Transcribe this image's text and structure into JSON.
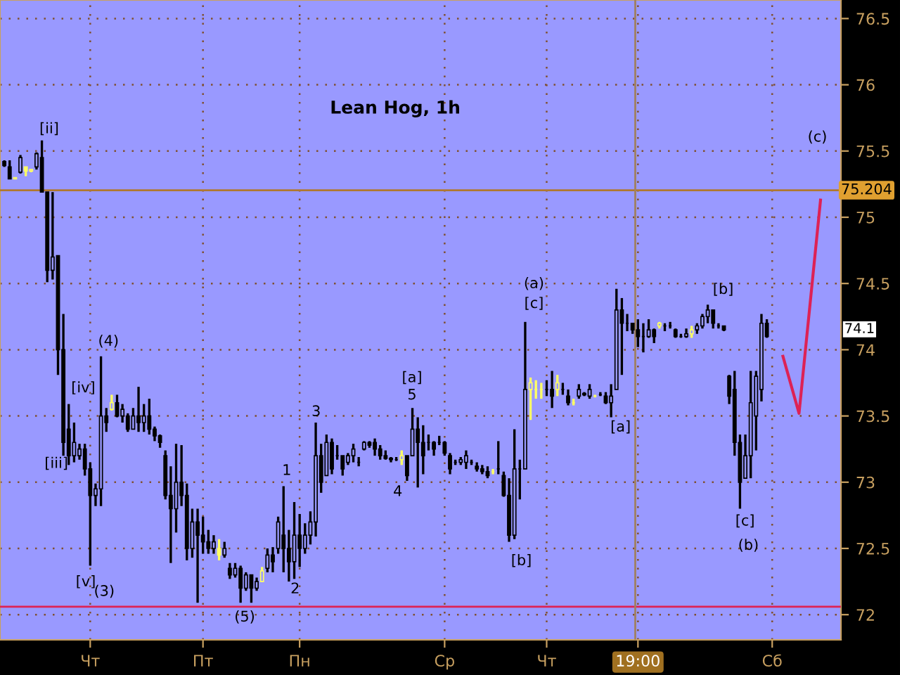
{
  "chart_data": {
    "type": "candlestick",
    "title": "Lean Hog, 1h",
    "categories": [
      null,
      null,
      null,
      null,
      null,
      null,
      null,
      null,
      null,
      null,
      null,
      null,
      null,
      null,
      null,
      null,
      "Чт",
      null,
      null,
      null,
      null,
      null,
      null,
      null,
      null,
      null,
      null,
      null,
      null,
      null,
      null,
      null,
      null,
      null,
      null,
      null,
      null,
      "Пт",
      null,
      null,
      null,
      null,
      null,
      null,
      null,
      null,
      null,
      null,
      null,
      null,
      null,
      null,
      null,
      null,
      null,
      "Пн",
      null,
      null,
      null,
      null,
      null,
      null,
      null,
      null,
      null,
      null,
      null,
      null,
      null,
      null,
      null,
      null,
      null,
      null,
      null,
      null,
      null,
      null,
      null,
      null,
      null,
      null,
      "Ср",
      null,
      null,
      null,
      null,
      null,
      null,
      null,
      null,
      null,
      null,
      null,
      null,
      null,
      null,
      null,
      null,
      null,
      null,
      "Чт",
      null,
      null,
      null,
      null,
      null,
      null,
      null,
      null,
      null,
      null,
      null,
      null,
      null,
      null,
      null,
      null,
      "19:00",
      null,
      null,
      null,
      null,
      null,
      null,
      null,
      null,
      null,
      null,
      null,
      null,
      null,
      null,
      null,
      null,
      null,
      null,
      null,
      null,
      null,
      null,
      null,
      null,
      "Сб",
      null,
      null,
      null,
      null,
      null,
      null,
      null,
      null,
      null,
      null,
      null,
      null
    ],
    "ohlc": [
      [
        75.42,
        75.43,
        75.38,
        75.39
      ],
      [
        75.38,
        75.43,
        75.29,
        75.29
      ],
      [
        75.29,
        75.3,
        75.29,
        75.3
      ],
      [
        75.34,
        75.47,
        75.33,
        75.45
      ],
      [
        75.38,
        75.38,
        75.31,
        75.35
      ],
      [
        75.35,
        75.36,
        75.34,
        75.36
      ],
      [
        75.38,
        75.49,
        75.36,
        75.48
      ],
      [
        75.45,
        75.58,
        75.19,
        75.19
      ],
      [
        75.19,
        75.19,
        74.51,
        74.6
      ],
      [
        74.6,
        75.19,
        74.53,
        74.7
      ],
      [
        74.71,
        74.71,
        73.81,
        74.0
      ],
      [
        74.0,
        74.27,
        73.2,
        73.3
      ],
      [
        73.4,
        73.59,
        73.13,
        73.2
      ],
      [
        73.2,
        73.45,
        73.15,
        73.3
      ],
      [
        73.2,
        73.29,
        73.17,
        73.25
      ],
      [
        73.25,
        73.29,
        73.05,
        73.1
      ],
      [
        73.1,
        73.15,
        72.37,
        72.9
      ],
      [
        72.9,
        72.99,
        72.82,
        72.95
      ],
      [
        72.95,
        73.95,
        72.82,
        73.5
      ],
      [
        73.5,
        73.56,
        73.38,
        73.45
      ],
      [
        73.55,
        73.66,
        73.54,
        73.6
      ],
      [
        73.6,
        73.66,
        73.49,
        73.5
      ],
      [
        73.5,
        73.59,
        73.45,
        73.55
      ],
      [
        73.5,
        73.52,
        73.38,
        73.4
      ],
      [
        73.4,
        73.56,
        73.4,
        73.5
      ],
      [
        73.5,
        73.72,
        73.38,
        73.45
      ],
      [
        73.45,
        73.59,
        73.38,
        73.5
      ],
      [
        73.5,
        73.63,
        73.36,
        73.4
      ],
      [
        73.4,
        73.42,
        73.31,
        73.35
      ],
      [
        73.35,
        73.36,
        73.26,
        73.3
      ],
      [
        73.2,
        73.24,
        72.87,
        72.9
      ],
      [
        72.9,
        73.12,
        72.39,
        72.8
      ],
      [
        72.8,
        73.29,
        72.62,
        73.0
      ],
      [
        73.0,
        73.28,
        72.82,
        72.9
      ],
      [
        72.9,
        72.99,
        72.41,
        72.5
      ],
      [
        72.5,
        72.8,
        72.43,
        72.7
      ],
      [
        72.7,
        72.8,
        72.09,
        72.6
      ],
      [
        72.6,
        72.74,
        72.46,
        72.55
      ],
      [
        72.55,
        72.64,
        72.46,
        72.5
      ],
      [
        72.5,
        72.6,
        72.46,
        72.55
      ],
      [
        72.5,
        72.57,
        72.41,
        72.45
      ],
      [
        72.45,
        72.55,
        72.43,
        72.5
      ],
      [
        72.35,
        72.39,
        72.27,
        72.3
      ],
      [
        72.3,
        72.39,
        72.28,
        72.35
      ],
      [
        72.35,
        72.37,
        72.09,
        72.2
      ],
      [
        72.2,
        72.32,
        72.18,
        72.3
      ],
      [
        72.3,
        72.3,
        72.09,
        72.2
      ],
      [
        72.2,
        72.28,
        72.18,
        72.25
      ],
      [
        72.25,
        72.36,
        72.25,
        72.33
      ],
      [
        72.35,
        72.5,
        72.32,
        72.45
      ],
      [
        72.45,
        72.51,
        72.32,
        72.4
      ],
      [
        72.5,
        72.74,
        72.46,
        72.7
      ],
      [
        72.6,
        72.97,
        72.32,
        72.5
      ],
      [
        72.5,
        72.64,
        72.25,
        72.4
      ],
      [
        72.4,
        72.85,
        72.27,
        72.6
      ],
      [
        72.6,
        72.76,
        72.36,
        72.5
      ],
      [
        72.5,
        72.69,
        72.46,
        72.6
      ],
      [
        72.6,
        72.78,
        72.53,
        72.7
      ],
      [
        72.7,
        73.45,
        72.59,
        73.2
      ],
      [
        73.2,
        73.29,
        72.92,
        73.0
      ],
      [
        73.05,
        73.36,
        73.05,
        73.3
      ],
      [
        73.3,
        73.33,
        73.06,
        73.1
      ],
      [
        73.2,
        73.28,
        73.17,
        73.2
      ],
      [
        73.2,
        73.2,
        73.05,
        73.1
      ],
      [
        73.15,
        73.22,
        73.13,
        73.2
      ],
      [
        73.2,
        73.29,
        73.15,
        73.25
      ],
      [
        73.15,
        73.19,
        73.12,
        73.15
      ],
      [
        73.25,
        73.31,
        73.24,
        73.3
      ],
      [
        73.3,
        73.31,
        73.26,
        73.28
      ],
      [
        73.3,
        73.33,
        73.2,
        73.25
      ],
      [
        73.25,
        73.28,
        73.17,
        73.2
      ],
      [
        73.2,
        73.24,
        73.17,
        73.18
      ],
      [
        73.18,
        73.19,
        73.15,
        73.17
      ],
      [
        73.17,
        73.19,
        73.16,
        73.17
      ],
      [
        73.17,
        73.24,
        73.13,
        73.2
      ],
      [
        73.2,
        73.2,
        73.01,
        73.05
      ],
      [
        73.2,
        73.56,
        73.2,
        73.4
      ],
      [
        73.4,
        73.49,
        72.96,
        73.3
      ],
      [
        73.3,
        73.43,
        73.06,
        73.2
      ],
      [
        73.3,
        73.36,
        73.24,
        73.3
      ],
      [
        73.3,
        73.31,
        73.2,
        73.25
      ],
      [
        73.3,
        73.35,
        73.28,
        73.3
      ],
      [
        73.3,
        73.31,
        73.2,
        73.22
      ],
      [
        73.2,
        73.22,
        73.06,
        73.1
      ],
      [
        73.15,
        73.17,
        73.13,
        73.15
      ],
      [
        73.15,
        73.19,
        73.13,
        73.17
      ],
      [
        73.15,
        73.24,
        73.1,
        73.2
      ],
      [
        73.15,
        73.17,
        73.13,
        73.15
      ],
      [
        73.12,
        73.15,
        73.08,
        73.1
      ],
      [
        73.1,
        73.13,
        73.06,
        73.08
      ],
      [
        73.08,
        73.12,
        73.03,
        73.05
      ],
      [
        73.08,
        73.1,
        73.06,
        73.08
      ],
      [
        73.1,
        73.31,
        73.06,
        73.1
      ],
      [
        73.05,
        73.08,
        72.89,
        72.9
      ],
      [
        72.9,
        73.03,
        72.55,
        72.6
      ],
      [
        72.6,
        73.4,
        72.57,
        73.1
      ],
      [
        73.1,
        73.17,
        72.87,
        73.1
      ],
      [
        73.1,
        74.21,
        73.1,
        73.7
      ],
      [
        73.7,
        73.79,
        73.47,
        73.75
      ],
      [
        73.7,
        73.77,
        73.63,
        73.7
      ],
      [
        73.7,
        73.75,
        73.63,
        73.7
      ],
      [
        73.7,
        73.77,
        73.65,
        73.7
      ],
      [
        73.7,
        73.84,
        73.56,
        73.65
      ],
      [
        73.7,
        73.81,
        73.65,
        73.75
      ],
      [
        73.7,
        73.75,
        73.66,
        73.7
      ],
      [
        73.65,
        73.7,
        73.58,
        73.6
      ],
      [
        73.6,
        73.63,
        73.58,
        73.6
      ],
      [
        73.65,
        73.74,
        73.63,
        73.7
      ],
      [
        73.66,
        73.68,
        73.65,
        73.67
      ],
      [
        73.65,
        73.74,
        73.63,
        73.7
      ],
      [
        73.65,
        73.66,
        73.64,
        73.65
      ],
      [
        73.66,
        73.68,
        73.65,
        73.66
      ],
      [
        73.65,
        73.68,
        73.59,
        73.6
      ],
      [
        73.6,
        73.74,
        73.49,
        73.65
      ],
      [
        73.7,
        74.46,
        73.7,
        74.3
      ],
      [
        74.3,
        74.39,
        73.81,
        74.2
      ],
      [
        74.2,
        74.27,
        74.14,
        74.2
      ],
      [
        74.2,
        74.2,
        74.12,
        74.15
      ],
      [
        74.15,
        74.23,
        74.02,
        74.1
      ],
      [
        74.1,
        74.2,
        73.98,
        74.1
      ],
      [
        74.1,
        74.23,
        74.09,
        74.15
      ],
      [
        74.15,
        74.16,
        74.05,
        74.1
      ],
      [
        74.18,
        74.21,
        74.16,
        74.2
      ],
      [
        74.18,
        74.2,
        74.14,
        74.18
      ],
      [
        74.18,
        74.21,
        74.16,
        74.18
      ],
      [
        74.15,
        74.16,
        74.09,
        74.1
      ],
      [
        74.1,
        74.12,
        74.09,
        74.1
      ],
      [
        74.1,
        74.16,
        74.09,
        74.12
      ],
      [
        74.12,
        74.18,
        74.09,
        74.15
      ],
      [
        74.15,
        74.2,
        74.12,
        74.18
      ],
      [
        74.18,
        74.27,
        74.16,
        74.25
      ],
      [
        74.25,
        74.34,
        74.2,
        74.3
      ],
      [
        74.3,
        74.3,
        74.16,
        74.2
      ],
      [
        74.18,
        74.2,
        74.16,
        74.18
      ],
      [
        74.18,
        74.18,
        74.14,
        74.15
      ],
      [
        73.8,
        73.81,
        73.59,
        73.65
      ],
      [
        73.7,
        73.84,
        73.2,
        73.3
      ],
      [
        73.3,
        73.36,
        72.8,
        73.0
      ],
      [
        73.03,
        73.36,
        73.03,
        73.2
      ],
      [
        73.2,
        73.84,
        73.03,
        73.6
      ],
      [
        73.5,
        73.84,
        73.24,
        73.8
      ],
      [
        73.7,
        74.27,
        73.61,
        74.2
      ],
      [
        74.2,
        74.23,
        74.09,
        74.1
      ],
      null,
      null,
      null,
      null,
      null,
      null,
      null,
      null,
      null,
      null,
      null,
      null,
      null
    ],
    "colors": [
      "#000000",
      "#000000",
      "#ffff66",
      "#000000",
      "#ffff66",
      "#ffff66",
      "#000000",
      "#000000",
      "#000000",
      "#000000",
      "#000000",
      "#000000",
      "#000000",
      "#000000",
      "#000000",
      "#000000",
      "#000000",
      "#000000",
      "#000000",
      "#000000",
      "#ffff66",
      "#000000",
      "#000000",
      "#000000",
      "#000000",
      "#000000",
      "#000000",
      "#000000",
      "#000000",
      "#000000",
      "#000000",
      "#000000",
      "#000000",
      "#000000",
      "#000000",
      "#000000",
      "#000000",
      "#000000",
      "#000000",
      "#000000",
      "#ffff66",
      "#000000",
      "#000000",
      "#000000",
      "#000000",
      "#000000",
      "#000000",
      "#000000",
      "#ffff66",
      "#000000",
      "#000000",
      "#000000",
      "#000000",
      "#000000",
      "#000000",
      "#000000",
      "#000000",
      "#000000",
      "#000000",
      "#000000",
      "#000000",
      "#000000",
      "#000000",
      "#000000",
      "#000000",
      "#000000",
      "#000000",
      "#000000",
      "#000000",
      "#000000",
      "#000000",
      "#000000",
      "#000000",
      "#000000",
      "#ffff66",
      "#000000",
      "#000000",
      "#000000",
      "#000000",
      "#000000",
      "#000000",
      "#000000",
      "#000000",
      "#000000",
      "#000000",
      "#000000",
      "#000000",
      "#000000",
      "#000000",
      "#000000",
      "#000000",
      "#ffff66",
      "#000000",
      "#000000",
      "#000000",
      "#000000",
      "#000000",
      "#000000",
      "#ffff66",
      "#ffff66",
      "#ffff66",
      "#000000",
      "#000000",
      "#ffff66",
      "#000000",
      "#000000",
      "#ffff66",
      "#000000",
      "#000000",
      "#000000",
      "#ffff66",
      "#000000",
      "#000000",
      "#000000",
      "#000000",
      "#000000",
      "#000000",
      "#000000",
      "#000000",
      "#000000",
      "#000000",
      "#000000",
      "#ffff66",
      "#000000",
      "#000000",
      "#000000",
      "#000000",
      "#000000",
      "#ffff66",
      "#000000",
      "#000000",
      "#000000",
      "#000000",
      "#000000",
      "#000000",
      "#000000",
      "#000000",
      "#000000",
      "#000000",
      "#000000",
      "#000000",
      "#000000",
      "#000000",
      null,
      null,
      null,
      null,
      null,
      null,
      null,
      null,
      null,
      null,
      null,
      null,
      null
    ],
    "series": [
      {
        "type": "line",
        "color": "#dd2255",
        "values": [
          null,
          null,
          null,
          null,
          null,
          null,
          null,
          null,
          null,
          null,
          null,
          null,
          null,
          null,
          null,
          null,
          null,
          null,
          null,
          null,
          null,
          null,
          null,
          null,
          null,
          null,
          null,
          null,
          null,
          null,
          null,
          null,
          null,
          null,
          null,
          null,
          null,
          null,
          null,
          null,
          null,
          null,
          null,
          null,
          null,
          null,
          null,
          null,
          null,
          null,
          null,
          null,
          null,
          null,
          null,
          null,
          null,
          null,
          null,
          null,
          null,
          null,
          null,
          null,
          null,
          null,
          null,
          null,
          null,
          null,
          null,
          null,
          null,
          null,
          null,
          null,
          null,
          null,
          null,
          null,
          null,
          null,
          null,
          null,
          null,
          null,
          null,
          null,
          null,
          null,
          null,
          null,
          null,
          null,
          null,
          null,
          null,
          null,
          null,
          null,
          null,
          null,
          null,
          null,
          null,
          null,
          null,
          null,
          null,
          null,
          null,
          null,
          null,
          null,
          null,
          null,
          null,
          null,
          null,
          null,
          null,
          null,
          null,
          null,
          null,
          null,
          null,
          null,
          null,
          null,
          null,
          null,
          null,
          null,
          null,
          null,
          null,
          null,
          null,
          null,
          null,
          null,
          null,
          null,
          null,
          73.95,
          null,
          null,
          73.52,
          null,
          null,
          null,
          75.13,
          null,
          null,
          null
        ]
      }
    ],
    "ylim": [
      71.81,
      76.64
    ],
    "yticks": [
      72,
      72.5,
      73,
      73.5,
      74,
      74.5,
      75,
      75.5,
      76,
      76.5
    ],
    "grid": true,
    "ref_lines": [
      {
        "axis": "y",
        "value": 75.204,
        "label": "75.204",
        "color": "#b07830"
      },
      {
        "axis": "y",
        "value": 72.06,
        "color": "#dd2255"
      },
      {
        "axis": "x",
        "value": "19:00",
        "color": "#a08060"
      }
    ],
    "annotations": [
      "[ii]",
      "[iii]",
      "[iv]",
      "[v]",
      "(3)",
      "(4)",
      "(5)",
      "1",
      "2",
      "3",
      "4",
      "5",
      "[a]",
      "[b]",
      "[c]",
      "(a)",
      "[a]",
      "[b]",
      "[c]",
      "(b)",
      "(c)",
      "74.1"
    ]
  }
}
